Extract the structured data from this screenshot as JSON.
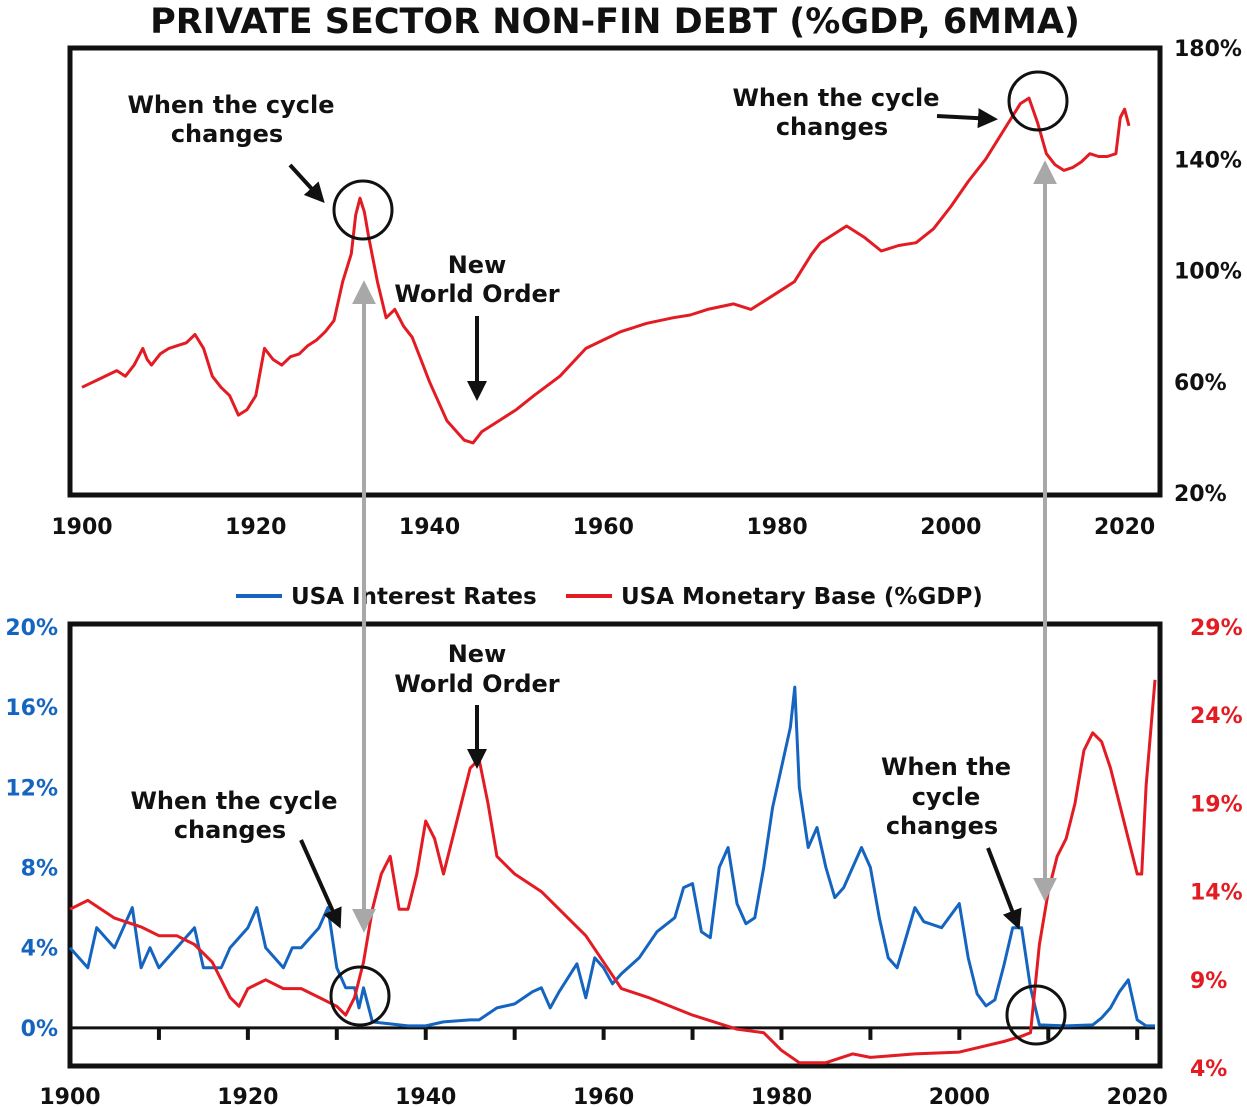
{
  "title": "PRIVATE SECTOR NON-FIN DEBT (%GDP, 6MMA)",
  "colors": {
    "red": "#e31b23",
    "blue": "#1565c0",
    "arrow_gray": "#a8a8a8",
    "frame": "#111111"
  },
  "chart_data": [
    {
      "type": "line",
      "title": "PRIVATE SECTOR NON-FIN DEBT (%GDP, 6MMA)",
      "xlim": [
        1900,
        2022
      ],
      "ylim": [
        20,
        180
      ],
      "x_ticks": [
        "1900",
        "1920",
        "1940",
        "1960",
        "1980",
        "2000",
        "2020"
      ],
      "y_ticks_right": [
        "180%",
        "140%",
        "100%",
        "60%",
        "20%"
      ],
      "series": [
        {
          "name": "Private Sector Non-Fin Debt (%GDP)",
          "color": "#e31b23",
          "x": [
            1900,
            1902,
            1904,
            1905,
            1906,
            1907,
            1907.5,
            1908,
            1909,
            1910,
            1911,
            1912,
            1913,
            1914,
            1915,
            1916,
            1917,
            1918,
            1919,
            1920,
            1921,
            1922,
            1923,
            1924,
            1925,
            1926,
            1927,
            1928,
            1929,
            1930,
            1931,
            1931.5,
            1932,
            1932.5,
            1933,
            1934,
            1935,
            1936,
            1937,
            1938,
            1939,
            1940,
            1942,
            1944,
            1945,
            1946,
            1948,
            1950,
            1952,
            1955,
            1958,
            1960,
            1962,
            1965,
            1968,
            1970,
            1972,
            1975,
            1977,
            1978,
            1980,
            1982,
            1984,
            1985,
            1986,
            1988,
            1990,
            1992,
            1994,
            1996,
            1998,
            2000,
            2002,
            2004,
            2006,
            2007,
            2008,
            2009,
            2010,
            2011,
            2012,
            2013,
            2014,
            2015,
            2016,
            2017,
            2018,
            2019,
            2019.5,
            2020,
            2020.5
          ],
          "values": [
            58,
            61,
            64,
            62,
            66,
            72,
            68,
            66,
            70,
            72,
            73,
            74,
            77,
            72,
            62,
            58,
            55,
            48,
            50,
            55,
            72,
            68,
            66,
            69,
            70,
            73,
            75,
            78,
            82,
            96,
            106,
            120,
            126,
            121,
            112,
            96,
            83,
            86,
            80,
            76,
            68,
            60,
            46,
            39,
            38,
            42,
            46,
            50,
            55,
            62,
            72,
            75,
            78,
            81,
            83,
            84,
            86,
            88,
            86,
            88,
            92,
            96,
            106,
            110,
            112,
            116,
            112,
            107,
            109,
            110,
            115,
            123,
            132,
            140,
            150,
            155,
            160,
            162,
            153,
            142,
            138,
            136,
            137,
            139,
            142,
            141,
            141,
            142,
            155,
            158,
            152
          ]
        }
      ]
    },
    {
      "type": "line",
      "xlim": [
        1900,
        2022
      ],
      "ylim_left": [
        -2,
        20
      ],
      "ylim_right": [
        4,
        29
      ],
      "x_ticks": [
        "1900",
        "1920",
        "1940",
        "1960",
        "1980",
        "2000",
        "2020"
      ],
      "y_ticks_left": [
        "20%",
        "16%",
        "12%",
        "8%",
        "4%",
        "0%"
      ],
      "y_ticks_right": [
        "29%",
        "24%",
        "19%",
        "14%",
        "9%",
        "4%"
      ],
      "legend": [
        "USA Interest Rates",
        "USA Monetary Base (%GDP)"
      ],
      "legend_position": "top-center",
      "series": [
        {
          "name": "USA Interest Rates",
          "axis": "left",
          "color": "#1565c0",
          "x": [
            1900,
            1902,
            1903,
            1905,
            1907,
            1908,
            1909,
            1910,
            1912,
            1914,
            1915,
            1917,
            1918,
            1920,
            1921,
            1922,
            1924,
            1925,
            1926,
            1928,
            1929,
            1930,
            1931,
            1932,
            1932.5,
            1933,
            1934,
            1936,
            1938,
            1940,
            1942,
            1945,
            1946,
            1948,
            1950,
            1952,
            1953,
            1954,
            1955,
            1956,
            1957,
            1958,
            1959,
            1960,
            1961,
            1962,
            1964,
            1966,
            1968,
            1969,
            1970,
            1971,
            1972,
            1973,
            1974,
            1975,
            1976,
            1977,
            1978,
            1979,
            1980,
            1981,
            1981.5,
            1982,
            1983,
            1984,
            1985,
            1986,
            1987,
            1988,
            1989,
            1990,
            1991,
            1992,
            1993,
            1994,
            1995,
            1996,
            1998,
            2000,
            2001,
            2002,
            2003,
            2004,
            2005,
            2006,
            2007,
            2008,
            2009,
            2012,
            2015,
            2016,
            2017,
            2018,
            2019,
            2020,
            2021,
            2022
          ],
          "values": [
            4,
            3,
            5,
            4,
            6,
            3,
            4,
            3,
            4,
            5,
            3,
            3,
            4,
            5,
            6,
            4,
            3,
            4,
            4,
            5,
            6,
            3,
            2,
            2,
            1,
            2,
            0.3,
            0.2,
            0.1,
            0.1,
            0.3,
            0.4,
            0.4,
            1,
            1.2,
            1.8,
            2,
            1,
            1.8,
            2.5,
            3.2,
            1.5,
            3.5,
            3,
            2.2,
            2.7,
            3.5,
            4.8,
            5.5,
            7,
            7.2,
            4.8,
            4.5,
            8,
            9,
            6.2,
            5.2,
            5.5,
            8,
            11,
            13,
            15,
            17,
            12,
            9,
            10,
            8,
            6.5,
            7,
            8,
            9,
            8,
            5.5,
            3.5,
            3,
            4.5,
            6,
            5.3,
            5,
            6.2,
            3.5,
            1.7,
            1.1,
            1.4,
            3.1,
            5,
            5,
            2,
            0.15,
            0.1,
            0.15,
            0.5,
            1,
            1.8,
            2.4,
            0.4,
            0.1,
            0.1
          ]
        },
        {
          "name": "USA Monetary Base (%GDP)",
          "axis": "right",
          "color": "#e31b23",
          "x": [
            1900,
            1902,
            1905,
            1908,
            1910,
            1912,
            1914,
            1916,
            1918,
            1919,
            1920,
            1922,
            1924,
            1926,
            1928,
            1930,
            1931,
            1932,
            1933,
            1934,
            1935,
            1936,
            1937,
            1938,
            1939,
            1940,
            1941,
            1942,
            1943,
            1944,
            1945,
            1946,
            1947,
            1948,
            1950,
            1953,
            1955,
            1958,
            1960,
            1962,
            1965,
            1970,
            1975,
            1978,
            1980,
            1982,
            1985,
            1988,
            1990,
            1995,
            2000,
            2005,
            2007,
            2008,
            2009,
            2010,
            2011,
            2012,
            2013,
            2014,
            2015,
            2016,
            2017,
            2018,
            2019,
            2020,
            2020.5,
            2021,
            2022
          ],
          "values": [
            13,
            13.5,
            12.5,
            12,
            11.5,
            11.5,
            11,
            10,
            8,
            7.5,
            8.5,
            9,
            8.5,
            8.5,
            8,
            7.5,
            7,
            8,
            10,
            13,
            15,
            16,
            13,
            13,
            15,
            18,
            17,
            15,
            17,
            19,
            21,
            21.5,
            19,
            16,
            15,
            14,
            13,
            11.5,
            10,
            8.5,
            8,
            7,
            6.2,
            6,
            5,
            4.3,
            4.3,
            4.8,
            4.6,
            4.8,
            4.9,
            5.5,
            5.8,
            6,
            11,
            14,
            16,
            17,
            19,
            22,
            23,
            22.5,
            21,
            19,
            17,
            15,
            15,
            20,
            26
          ]
        }
      ]
    }
  ],
  "top_panel": {
    "annotations": {
      "left_cycle": [
        "When the cycle",
        "changes"
      ],
      "new_world_order": [
        "New",
        "World Order"
      ],
      "right_cycle": [
        "When the cycle",
        "changes"
      ]
    }
  },
  "bottom_panel": {
    "annotations": {
      "new_world_order": [
        "New",
        "World Order"
      ],
      "left_cycle": [
        "When the cycle",
        "changes"
      ],
      "right_cycle": [
        "When the",
        "cycle",
        "changes"
      ]
    }
  }
}
